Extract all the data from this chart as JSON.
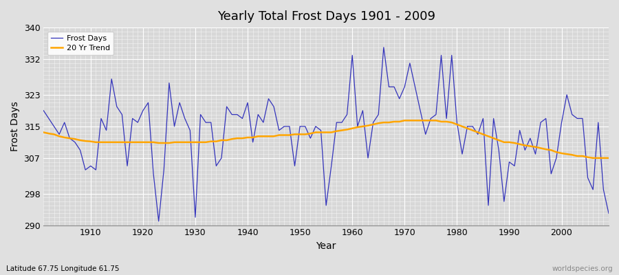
{
  "title": "Yearly Total Frost Days 1901 - 2009",
  "xlabel": "Year",
  "ylabel": "Frost Days",
  "subtitle": "Latitude 67.75 Longitude 61.75",
  "watermark": "worldspecies.org",
  "ylim": [
    290,
    340
  ],
  "xlim": [
    1901,
    2009
  ],
  "yticks": [
    290,
    298,
    307,
    315,
    323,
    332,
    340
  ],
  "line_color": "#3333bb",
  "trend_color": "#FFA500",
  "bg_color": "#e0e0e0",
  "plot_bg_color": "#d8d8d8",
  "years": [
    1901,
    1902,
    1903,
    1904,
    1905,
    1906,
    1907,
    1908,
    1909,
    1910,
    1911,
    1912,
    1913,
    1914,
    1915,
    1916,
    1917,
    1918,
    1919,
    1920,
    1921,
    1922,
    1923,
    1924,
    1925,
    1926,
    1927,
    1928,
    1929,
    1930,
    1931,
    1932,
    1933,
    1934,
    1935,
    1936,
    1937,
    1938,
    1939,
    1940,
    1941,
    1942,
    1943,
    1944,
    1945,
    1946,
    1947,
    1948,
    1949,
    1950,
    1951,
    1952,
    1953,
    1954,
    1955,
    1956,
    1957,
    1958,
    1959,
    1960,
    1961,
    1962,
    1963,
    1964,
    1965,
    1966,
    1967,
    1968,
    1969,
    1970,
    1971,
    1972,
    1973,
    1974,
    1975,
    1976,
    1977,
    1978,
    1979,
    1980,
    1981,
    1982,
    1983,
    1984,
    1985,
    1986,
    1987,
    1988,
    1989,
    1990,
    1991,
    1992,
    1993,
    1994,
    1995,
    1996,
    1997,
    1998,
    1999,
    2000,
    2001,
    2002,
    2003,
    2004,
    2005,
    2006,
    2007,
    2008,
    2009
  ],
  "frost_days": [
    319,
    317,
    315,
    313,
    316,
    312,
    311,
    309,
    304,
    305,
    304,
    317,
    314,
    327,
    320,
    318,
    305,
    317,
    316,
    319,
    321,
    303,
    291,
    304,
    326,
    315,
    321,
    317,
    314,
    292,
    318,
    316,
    316,
    305,
    307,
    320,
    318,
    318,
    317,
    321,
    311,
    318,
    316,
    322,
    320,
    314,
    315,
    315,
    305,
    315,
    315,
    312,
    315,
    314,
    295,
    305,
    316,
    316,
    318,
    333,
    315,
    319,
    307,
    316,
    318,
    335,
    325,
    325,
    322,
    325,
    331,
    325,
    319,
    313,
    317,
    318,
    333,
    317,
    333,
    316,
    308,
    315,
    315,
    313,
    317,
    295,
    317,
    309,
    296,
    306,
    305,
    314,
    309,
    312,
    308,
    316,
    317,
    303,
    307,
    316,
    323,
    318,
    317,
    317,
    302,
    299,
    316,
    299,
    293
  ],
  "trend_vals": [
    313.5,
    313.2,
    313.0,
    312.5,
    312.2,
    312.0,
    311.8,
    311.5,
    311.3,
    311.2,
    311.0,
    311.0,
    311.0,
    311.0,
    311.0,
    311.0,
    311.0,
    311.0,
    311.0,
    311.0,
    311.0,
    311.0,
    310.8,
    310.8,
    310.8,
    311.0,
    311.0,
    311.0,
    311.0,
    311.0,
    311.0,
    311.0,
    311.2,
    311.2,
    311.5,
    311.5,
    311.8,
    312.0,
    312.0,
    312.2,
    312.2,
    312.5,
    312.5,
    312.5,
    312.5,
    312.8,
    312.8,
    312.8,
    313.0,
    313.0,
    313.0,
    313.2,
    313.5,
    313.5,
    313.5,
    313.5,
    313.8,
    314.0,
    314.2,
    314.5,
    314.8,
    315.0,
    315.2,
    315.5,
    315.8,
    316.0,
    316.0,
    316.2,
    316.2,
    316.5,
    316.5,
    316.5,
    316.5,
    316.5,
    316.5,
    316.5,
    316.2,
    316.2,
    316.0,
    315.5,
    315.0,
    314.5,
    314.0,
    313.5,
    313.0,
    312.5,
    312.0,
    311.5,
    311.0,
    311.0,
    310.8,
    310.5,
    310.2,
    310.0,
    309.8,
    309.5,
    309.2,
    309.0,
    308.5,
    308.2,
    308.0,
    307.8,
    307.5,
    307.5,
    307.2,
    307.0,
    307.0,
    307.0,
    307.0
  ]
}
